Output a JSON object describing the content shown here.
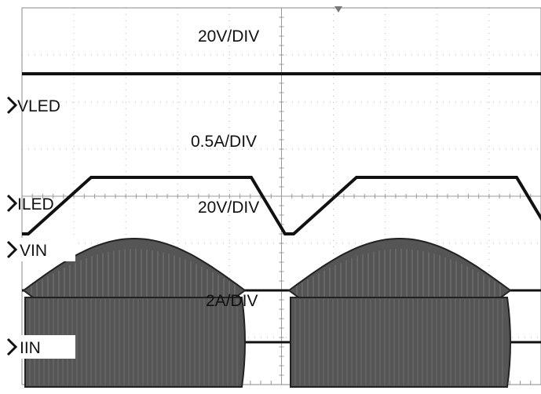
{
  "chart_data": {
    "type": "line",
    "title": "",
    "grid": true,
    "divisions": {
      "x": 10,
      "y": 8
    },
    "trigger_marker": "top-center",
    "traces": [
      {
        "channel_label": "VLED",
        "scale_label": "20V/DIV",
        "ground_level_div": 5.0,
        "shape": "flat",
        "level_div": 6.6,
        "color": "#111111"
      },
      {
        "channel_label": "ILED",
        "scale_label": "0.5A/DIV",
        "ground_level_div": 3.0,
        "shape": "trapezoid",
        "low_div": 3.2,
        "high_div": 4.4,
        "color": "#111111"
      },
      {
        "channel_label": "VIN",
        "scale_label": "20V/DIV",
        "ground_level_div": 2.0,
        "shape": "rectified-sine-envelope",
        "amplitude_div": 1.1,
        "color": "#555555"
      },
      {
        "channel_label": "IIN",
        "scale_label": "2A/DIV",
        "ground_level_div": 0.9,
        "shape": "rectangular-envelope",
        "amplitude_div": 0.95,
        "color": "#555555"
      }
    ]
  }
}
